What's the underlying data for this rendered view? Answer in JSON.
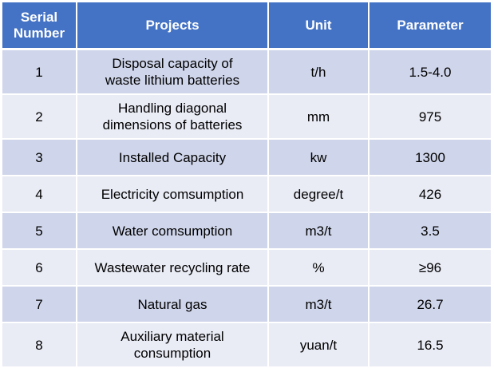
{
  "table": {
    "headers": [
      "Serial\nNumber",
      "Projects",
      "Unit",
      "Parameter"
    ],
    "rows": [
      {
        "serial": "1",
        "project": "Disposal capacity of\nwaste lithium batteries",
        "unit": "t/h",
        "parameter": "1.5-4.0"
      },
      {
        "serial": "2",
        "project": "Handling diagonal\ndimensions of batteries",
        "unit": "mm",
        "parameter": "975"
      },
      {
        "serial": "3",
        "project": "Installed Capacity",
        "unit": "kw",
        "parameter": "1300"
      },
      {
        "serial": "4",
        "project": "Electricity comsumption",
        "unit": "degree/t",
        "parameter": "426"
      },
      {
        "serial": "5",
        "project": "Water comsumption",
        "unit": "m3/t",
        "parameter": "3.5"
      },
      {
        "serial": "6",
        "project": "Wastewater recycling rate",
        "unit": "%",
        "parameter": "≥96"
      },
      {
        "serial": "7",
        "project": "Natural gas",
        "unit": "m3/t",
        "parameter": "26.7"
      },
      {
        "serial": "8",
        "project": "Auxiliary material\nconsumption",
        "unit": "yuan/t",
        "parameter": "16.5"
      }
    ]
  },
  "colors": {
    "header_bg": "#4472c4",
    "header_text": "#ffffff",
    "row_odd_bg": "#cfd5ea",
    "row_even_bg": "#e9ebf5"
  }
}
